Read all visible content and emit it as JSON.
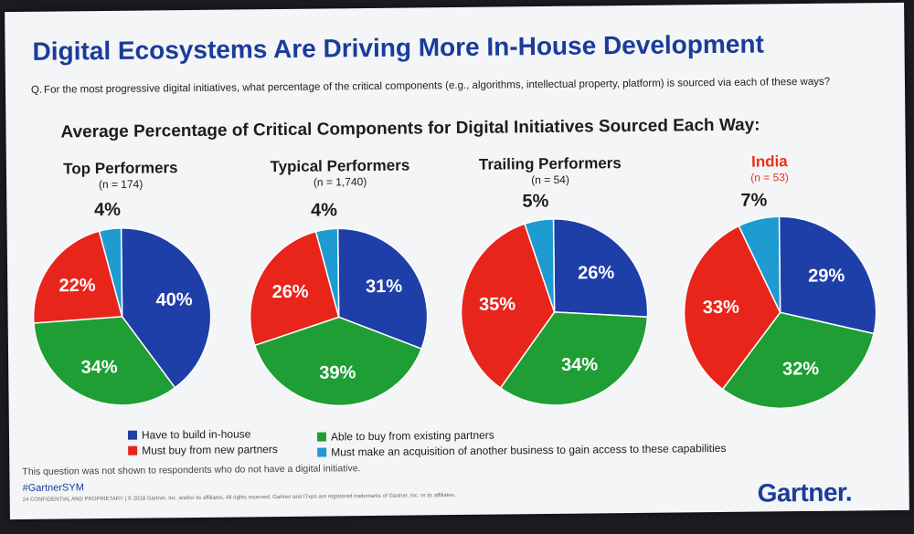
{
  "title": "Digital Ecosystems Are Driving More In-House Development",
  "question_prefix": "Q.",
  "question": "For the most progressive digital initiatives, what percentage of the critical components (e.g., algorithms, intellectual property, platform) is sourced via each of these ways?",
  "subtitle": "Average Percentage of Critical Components for Digital Initiatives Sourced Each Way:",
  "colors": {
    "build": "#1f3fa8",
    "new_partners": "#e8251b",
    "existing_partners": "#1e9e35",
    "acquisition": "#1e9bd0",
    "india_title": "#e8321c",
    "title": "#1a3c9a"
  },
  "legend": [
    {
      "key": "build",
      "label": "Have to build in-house"
    },
    {
      "key": "new_partners",
      "label": "Must buy from new partners"
    },
    {
      "key": "existing_partners",
      "label": "Able to buy from existing partners"
    },
    {
      "key": "acquisition",
      "label": "Must make an acquisition of another business to gain access to these capabilities"
    }
  ],
  "chart_data": [
    {
      "type": "pie",
      "title": "Top Performers",
      "n": "(n = 174)",
      "slices": [
        {
          "key": "build",
          "value": 40,
          "label": "40%"
        },
        {
          "key": "existing_partners",
          "value": 34,
          "label": "34%"
        },
        {
          "key": "new_partners",
          "value": 22,
          "label": "22%"
        },
        {
          "key": "acquisition",
          "value": 4,
          "label": "4%"
        }
      ]
    },
    {
      "type": "pie",
      "title": "Typical Performers",
      "n": "(n = 1,740)",
      "slices": [
        {
          "key": "build",
          "value": 31,
          "label": "31%"
        },
        {
          "key": "existing_partners",
          "value": 39,
          "label": "39%"
        },
        {
          "key": "new_partners",
          "value": 26,
          "label": "26%"
        },
        {
          "key": "acquisition",
          "value": 4,
          "label": "4%"
        }
      ]
    },
    {
      "type": "pie",
      "title": "Trailing Performers",
      "n": "(n = 54)",
      "slices": [
        {
          "key": "build",
          "value": 26,
          "label": "26%"
        },
        {
          "key": "existing_partners",
          "value": 34,
          "label": "34%"
        },
        {
          "key": "new_partners",
          "value": 35,
          "label": "35%"
        },
        {
          "key": "acquisition",
          "value": 5,
          "label": "5%"
        }
      ]
    },
    {
      "type": "pie",
      "title": "India",
      "n": "(n = 53)",
      "slices": [
        {
          "key": "build",
          "value": 29,
          "label": "29%"
        },
        {
          "key": "existing_partners",
          "value": 32,
          "label": "32%"
        },
        {
          "key": "new_partners",
          "value": 33,
          "label": "33%"
        },
        {
          "key": "acquisition",
          "value": 7,
          "label": "7%"
        }
      ]
    }
  ],
  "note": "This question was not shown to respondents who do not have a digital initiative.",
  "hashtag": "#GartnerSYM",
  "footer": "24  CONFIDENTIAL AND PROPRIETARY  |  © 2018 Gartner, Inc. and/or its affiliates. All rights reserved. Gartner and ITxpo are registered trademarks of Gartner, Inc. or its affiliates.",
  "brand": "Gartner"
}
